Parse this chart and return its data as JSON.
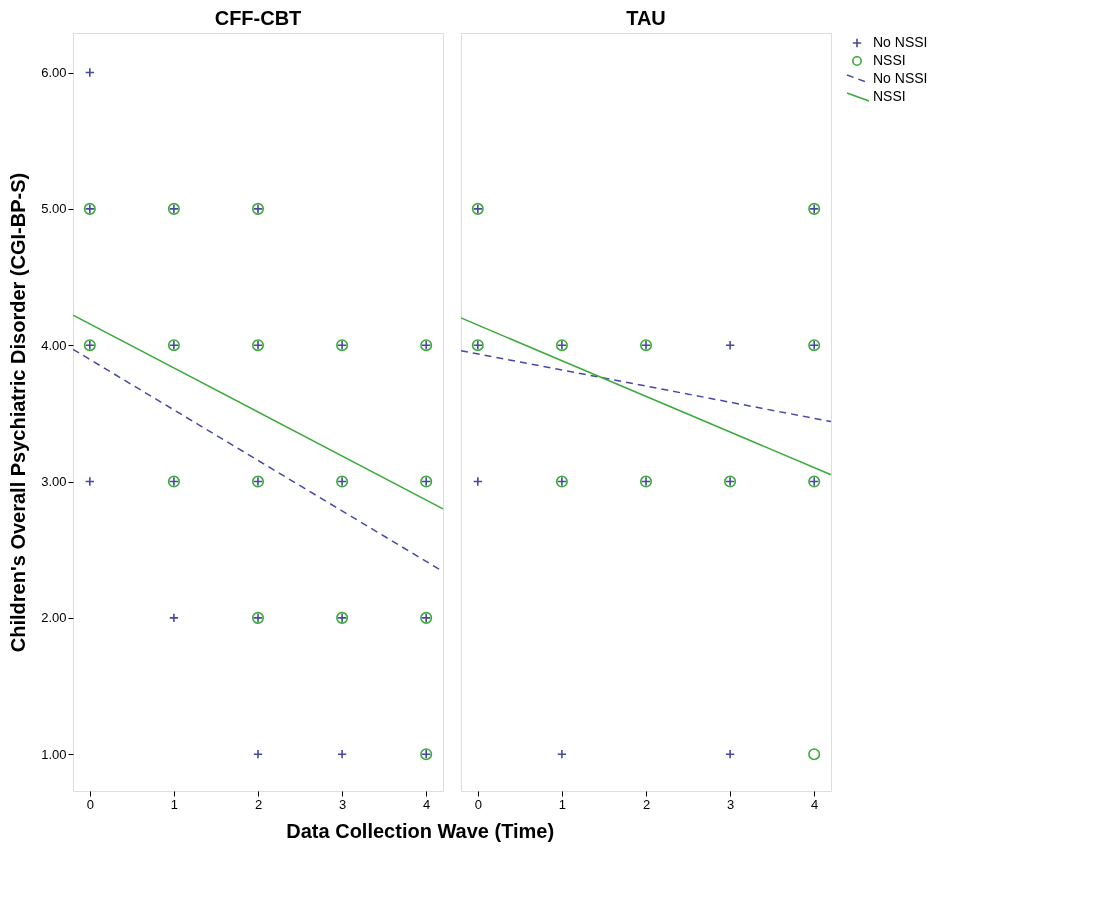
{
  "chart_data": [
    {
      "type": "scatter",
      "title": "CFF-CBT",
      "ylabel": "Children's Overall Psychiatric Disorder (CGI-BP-S)",
      "xlabel": "Data Collection Wave (Time)",
      "xlim": [
        -0.2,
        4.2
      ],
      "xticks": [
        0,
        1,
        2,
        3,
        4
      ],
      "ylim": [
        0.73,
        6.29
      ],
      "yticks": [
        {
          "value": 1,
          "label": "1.00"
        },
        {
          "value": 2,
          "label": "2.00"
        },
        {
          "value": 3,
          "label": "3.00"
        },
        {
          "value": 4,
          "label": "4.00"
        },
        {
          "value": 5,
          "label": "5.00"
        },
        {
          "value": 6,
          "label": "6.00"
        }
      ],
      "grid": false,
      "legend": "top right",
      "series": [
        {
          "name": "No NSSI",
          "marker": "cross",
          "color": "#4848a4",
          "x": [
            0,
            0,
            0,
            0,
            1,
            1,
            1,
            1,
            2,
            2,
            2,
            2,
            2,
            3,
            3,
            3,
            3,
            4,
            4,
            4,
            4
          ],
          "values": [
            6,
            5,
            4,
            3,
            5,
            4,
            3,
            2,
            5,
            4,
            3,
            2,
            1,
            4,
            3,
            2,
            1,
            4,
            3,
            2,
            1
          ]
        },
        {
          "name": "NSSI",
          "marker": "circle",
          "color": "#3aaa3a",
          "x": [
            0,
            0,
            1,
            1,
            1,
            2,
            2,
            2,
            2,
            3,
            3,
            3,
            4,
            4,
            4,
            4
          ],
          "values": [
            5,
            4,
            5,
            4,
            3,
            5,
            4,
            3,
            2,
            4,
            3,
            2,
            4,
            3,
            2,
            1
          ]
        },
        {
          "name": "No NSSI",
          "type": "line",
          "line_style": "dashed",
          "color": "#4848a4",
          "x": [
            -0.2,
            4.2
          ],
          "values": [
            3.97,
            2.34
          ]
        },
        {
          "name": "NSSI",
          "type": "line",
          "line_style": "solid",
          "color": "#3aaa3a",
          "x": [
            -0.2,
            4.2
          ],
          "values": [
            4.22,
            2.8
          ]
        }
      ]
    },
    {
      "type": "scatter",
      "title": "TAU",
      "xlim": [
        -0.2,
        4.2
      ],
      "xticks": [
        0,
        1,
        2,
        3,
        4
      ],
      "ylim": [
        0.73,
        6.29
      ],
      "tick_labels": "x",
      "grid": false,
      "series": [
        {
          "marker": "cross",
          "color": "#4848a4",
          "x": [
            0,
            0,
            0,
            1,
            1,
            1,
            2,
            2,
            3,
            3,
            3,
            4,
            4,
            4
          ],
          "values": [
            5,
            4,
            3,
            4,
            3,
            1,
            4,
            3,
            4,
            3,
            1,
            5,
            4,
            3
          ]
        },
        {
          "marker": "circle",
          "color": "#3aaa3a",
          "x": [
            0,
            0,
            1,
            1,
            2,
            2,
            3,
            4,
            4,
            4,
            4
          ],
          "values": [
            5,
            4,
            4,
            3,
            4,
            3,
            3,
            5,
            4,
            3,
            1
          ]
        },
        {
          "type": "line",
          "line_style": "dashed",
          "color": "#4848a4",
          "x": [
            -0.2,
            4.2
          ],
          "values": [
            3.96,
            3.44
          ]
        },
        {
          "type": "line",
          "line_style": "solid",
          "color": "#3aaa3a",
          "x": [
            -0.2,
            4.2
          ],
          "values": [
            4.2,
            3.05
          ]
        }
      ]
    }
  ]
}
